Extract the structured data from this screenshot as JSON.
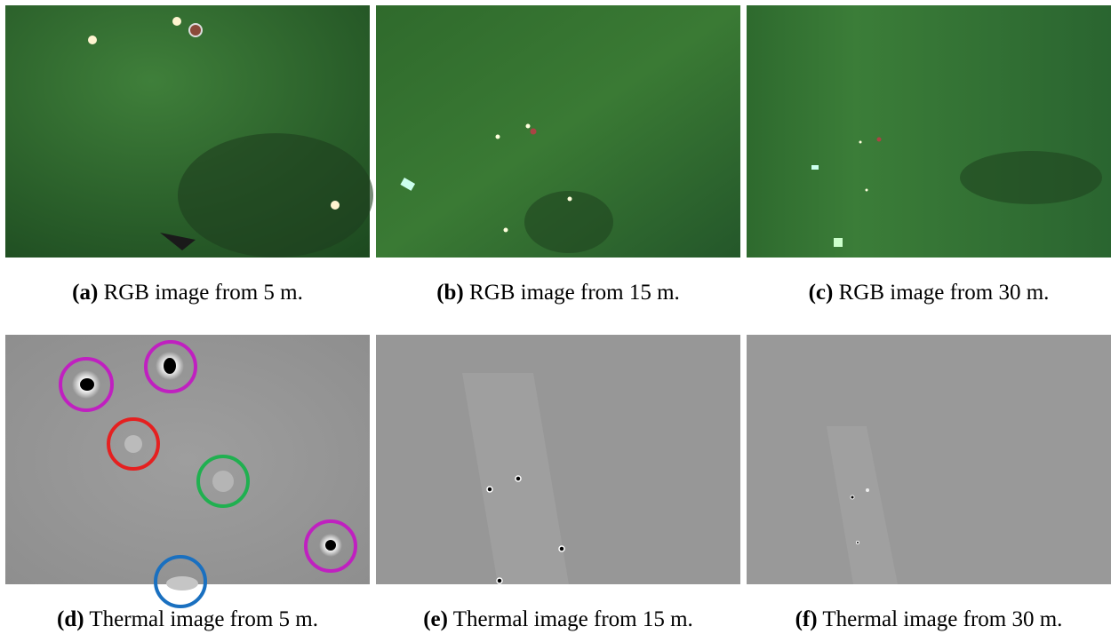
{
  "panels": [
    {
      "label": "(a)",
      "caption": "RGB image from 5 m."
    },
    {
      "label": "(b)",
      "caption": "RGB image from 15 m."
    },
    {
      "label": "(c)",
      "caption": "RGB image from 30 m."
    },
    {
      "label": "(d)",
      "caption": "Thermal image from 5 m."
    },
    {
      "label": "(e)",
      "caption": "Thermal image from 15 m."
    },
    {
      "label": "(f)",
      "caption": "Thermal image from 30 m."
    }
  ]
}
